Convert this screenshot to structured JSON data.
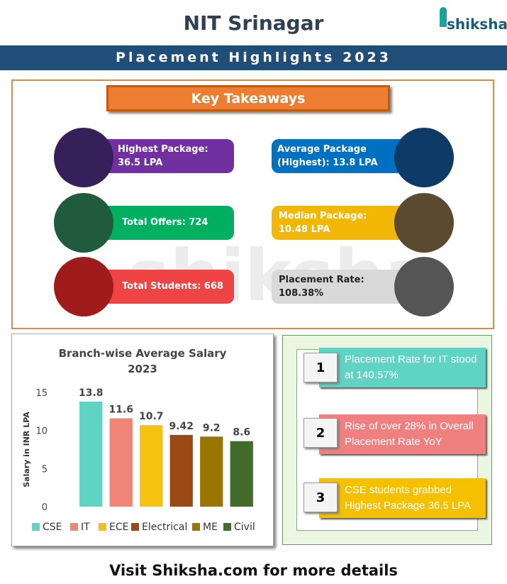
{
  "header": {
    "title": "NIT Srinagar",
    "logo": "shiksha",
    "banner": "Placement Highlights 2023"
  },
  "takeaways": {
    "title": "Key Takeaways",
    "items": [
      "Highest Package: 36.5 LPA",
      "Average Package (Highest): 13.8 LPA",
      "Total Offers: 724",
      "Median Package: 10.48 LPA",
      "Total Students: 668",
      "Placement Rate: 108.38%"
    ]
  },
  "chart_data": {
    "type": "bar",
    "title": "Branch-wise  Average Salary 2023",
    "y_label": "Salary in INR LPA",
    "categories": [
      "CSE",
      "IT",
      "ECE",
      "Electrical",
      "ME",
      "Civil"
    ],
    "values": [
      13.8,
      11.6,
      10.7,
      9.42,
      9.2,
      8.6
    ],
    "colors": [
      "#5fd3c4",
      "#f08477",
      "#f5c211",
      "#9b4a16",
      "#997600",
      "#436b2c"
    ],
    "ylim": [
      0,
      15
    ],
    "yticks": [
      0,
      5,
      10,
      15
    ],
    "grid": false,
    "legend": "bottom"
  },
  "highlights": [
    {
      "number": "1",
      "text": "Placement Rate for IT stood at 140.57%"
    },
    {
      "number": "2",
      "text": "Rise of over 28% in Overall Placement Rate YoY"
    },
    {
      "number": "3",
      "text": "CSE students grabbed Highest Package 36.5 LPA"
    }
  ],
  "footer": "Visit Shiksha.com for more details"
}
